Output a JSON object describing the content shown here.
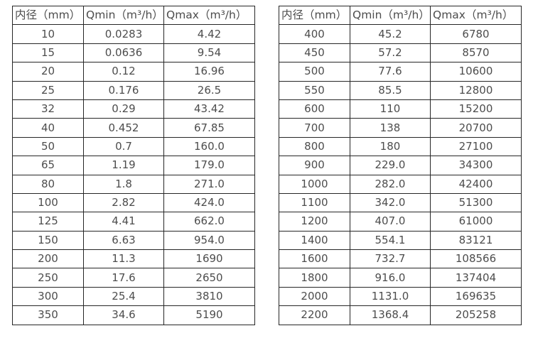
{
  "tables": [
    {
      "name": "flow-spec-table-small-diameters",
      "headers": [
        "内径（mm）",
        "Qmin（m³/h）",
        "Qmax（m³/h）"
      ],
      "rows": [
        [
          "10",
          "0.0283",
          "4.42"
        ],
        [
          "15",
          "0.0636",
          "9.54"
        ],
        [
          "20",
          "0.12",
          "16.96"
        ],
        [
          "25",
          "0.176",
          "26.5"
        ],
        [
          "32",
          "0.29",
          "43.42"
        ],
        [
          "40",
          "0.452",
          "67.85"
        ],
        [
          "50",
          "0.7",
          "160.0"
        ],
        [
          "65",
          "1.19",
          "179.0"
        ],
        [
          "80",
          "1.8",
          "271.0"
        ],
        [
          "100",
          "2.82",
          "424.0"
        ],
        [
          "125",
          "4.41",
          "662.0"
        ],
        [
          "150",
          "6.63",
          "954.0"
        ],
        [
          "200",
          "11.3",
          "1690"
        ],
        [
          "250",
          "17.6",
          "2650"
        ],
        [
          "300",
          "25.4",
          "3810"
        ],
        [
          "350",
          "34.6",
          "5190"
        ]
      ]
    },
    {
      "name": "flow-spec-table-large-diameters",
      "headers": [
        "内径（mm）",
        "Qmin（m³/h）",
        "Qmax（m³/h）"
      ],
      "rows": [
        [
          "400",
          "45.2",
          "6780"
        ],
        [
          "450",
          "57.2",
          "8570"
        ],
        [
          "500",
          "77.6",
          "10600"
        ],
        [
          "550",
          "85.5",
          "12800"
        ],
        [
          "600",
          "110",
          "15200"
        ],
        [
          "700",
          "138",
          "20700"
        ],
        [
          "800",
          "180",
          "27100"
        ],
        [
          "900",
          "229.0",
          "34300"
        ],
        [
          "1000",
          "282.0",
          "42400"
        ],
        [
          "1100",
          "342.0",
          "51300"
        ],
        [
          "1200",
          "407.0",
          "61000"
        ],
        [
          "1400",
          "554.1",
          "83121"
        ],
        [
          "1600",
          "732.7",
          "108566"
        ],
        [
          "1800",
          "916.0",
          "137404"
        ],
        [
          "2000",
          "1131.0",
          "169635"
        ],
        [
          "2200",
          "1368.4",
          "205258"
        ]
      ]
    }
  ],
  "colors": {
    "border": "#262626",
    "text": "#4d4d4d",
    "background": "#ffffff"
  }
}
